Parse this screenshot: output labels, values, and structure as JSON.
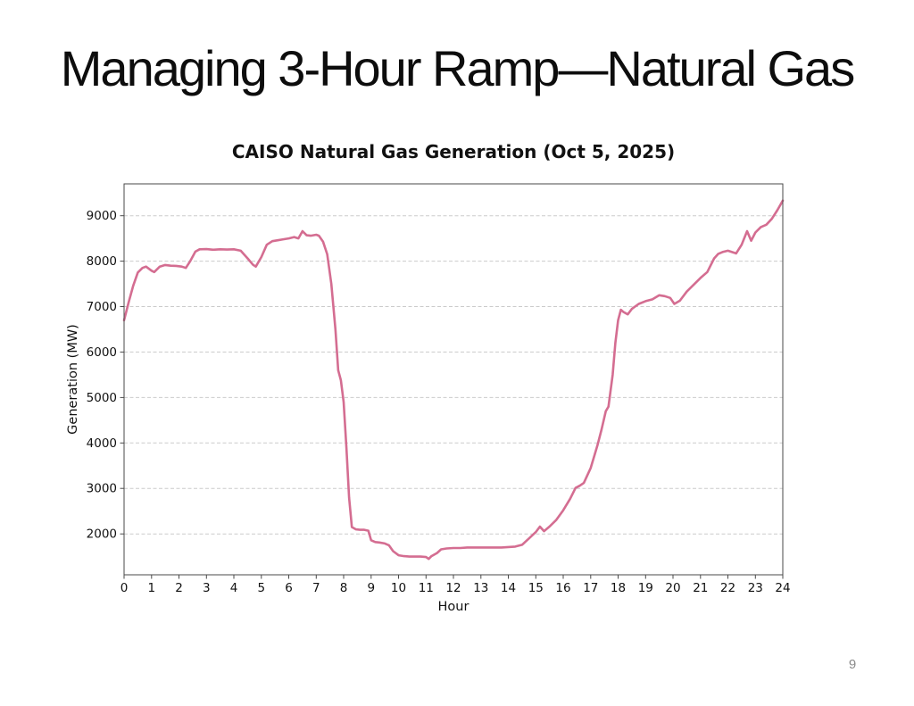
{
  "slide": {
    "title": "Managing 3-Hour Ramp—Natural Gas",
    "page_number": "9"
  },
  "chart_data": {
    "type": "line",
    "title": "CAISO Natural Gas Generation (Oct 5, 2025)",
    "xlabel": "Hour",
    "ylabel": "Generation (MW)",
    "xlim": [
      0,
      24
    ],
    "ylim": [
      1100,
      9700
    ],
    "x_ticks": [
      0,
      1,
      2,
      3,
      4,
      5,
      6,
      7,
      8,
      9,
      10,
      11,
      12,
      13,
      14,
      15,
      16,
      17,
      18,
      19,
      20,
      21,
      22,
      23,
      24
    ],
    "y_ticks": [
      2000,
      3000,
      4000,
      5000,
      6000,
      7000,
      8000,
      9000
    ],
    "grid": "horizontal-dashed",
    "legend": "none",
    "line_color": "#d46d91",
    "series": [
      {
        "name": "natural-gas-generation",
        "x": [
          0,
          0.17,
          0.33,
          0.5,
          0.67,
          0.8,
          1.0,
          1.1,
          1.3,
          1.5,
          1.7,
          1.9,
          2.1,
          2.25,
          2.4,
          2.6,
          2.75,
          3.0,
          3.25,
          3.5,
          3.75,
          4.0,
          4.25,
          4.5,
          4.7,
          4.8,
          5.0,
          5.2,
          5.4,
          5.6,
          5.8,
          6.0,
          6.2,
          6.35,
          6.5,
          6.65,
          6.8,
          7.0,
          7.1,
          7.25,
          7.4,
          7.55,
          7.7,
          7.8,
          7.9,
          8.0,
          8.1,
          8.2,
          8.3,
          8.45,
          8.6,
          8.75,
          8.9,
          9.0,
          9.15,
          9.3,
          9.5,
          9.65,
          9.8,
          10.0,
          10.2,
          10.4,
          10.6,
          10.8,
          11.0,
          11.1,
          11.2,
          11.4,
          11.55,
          11.75,
          12.0,
          12.25,
          12.5,
          12.75,
          13.0,
          13.25,
          13.5,
          13.75,
          14.0,
          14.25,
          14.5,
          14.75,
          15.0,
          15.15,
          15.3,
          15.5,
          15.75,
          16.0,
          16.25,
          16.45,
          16.6,
          16.75,
          17.0,
          17.25,
          17.4,
          17.55,
          17.65,
          17.8,
          17.9,
          18.0,
          18.1,
          18.2,
          18.35,
          18.5,
          18.75,
          19.0,
          19.25,
          19.5,
          19.7,
          19.9,
          20.05,
          20.25,
          20.5,
          20.75,
          21.0,
          21.25,
          21.5,
          21.65,
          21.8,
          22.0,
          22.15,
          22.3,
          22.5,
          22.7,
          22.85,
          23.0,
          23.2,
          23.4,
          23.6,
          23.8,
          24.0
        ],
        "y": [
          6700,
          7100,
          7450,
          7750,
          7850,
          7880,
          7790,
          7760,
          7880,
          7915,
          7900,
          7895,
          7880,
          7850,
          7990,
          8210,
          8260,
          8265,
          8250,
          8260,
          8255,
          8260,
          8230,
          8060,
          7920,
          7880,
          8090,
          8360,
          8440,
          8460,
          8480,
          8500,
          8530,
          8500,
          8660,
          8570,
          8560,
          8580,
          8560,
          8430,
          8150,
          7500,
          6500,
          5600,
          5380,
          4900,
          3900,
          2800,
          2150,
          2100,
          2090,
          2090,
          2070,
          1860,
          1820,
          1810,
          1790,
          1750,
          1620,
          1530,
          1510,
          1500,
          1500,
          1500,
          1490,
          1450,
          1510,
          1580,
          1660,
          1680,
          1690,
          1690,
          1700,
          1700,
          1700,
          1700,
          1700,
          1700,
          1710,
          1720,
          1760,
          1900,
          2040,
          2160,
          2060,
          2160,
          2310,
          2520,
          2770,
          3010,
          3060,
          3120,
          3450,
          3950,
          4300,
          4700,
          4800,
          5500,
          6200,
          6700,
          6930,
          6880,
          6830,
          6950,
          7060,
          7120,
          7160,
          7250,
          7230,
          7190,
          7060,
          7130,
          7330,
          7480,
          7630,
          7760,
          8060,
          8160,
          8200,
          8230,
          8200,
          8170,
          8360,
          8660,
          8450,
          8630,
          8750,
          8800,
          8930,
          9120,
          9330
        ]
      }
    ]
  }
}
